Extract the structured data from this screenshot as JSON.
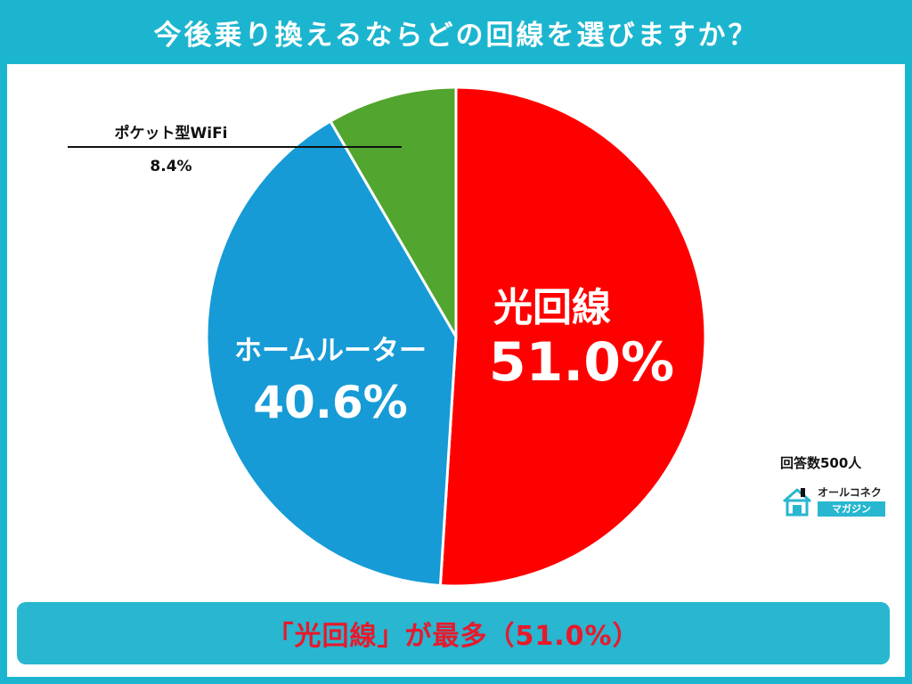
{
  "title": "今後乗り換えるならどの回線を選びますか？",
  "chart_data": {
    "type": "pie",
    "slices": [
      {
        "label": "光回線",
        "value": 51.0,
        "display": "51.0%",
        "color": "#ff0000"
      },
      {
        "label": "ホームルーター",
        "value": 40.6,
        "display": "40.6%",
        "color": "#169bd6"
      },
      {
        "label": "ポケット型WiFi",
        "value": 8.4,
        "display": "8.4%",
        "color": "#52a52e"
      }
    ],
    "start_angle_deg": 0,
    "direction": "clockwise"
  },
  "respondents": "回答数500人",
  "logo": {
    "top_text": "オールコネクト",
    "bottom_text": "マガジン",
    "icon": "house-icon"
  },
  "conclusion": "「光回線」が最多（51.0%）"
}
